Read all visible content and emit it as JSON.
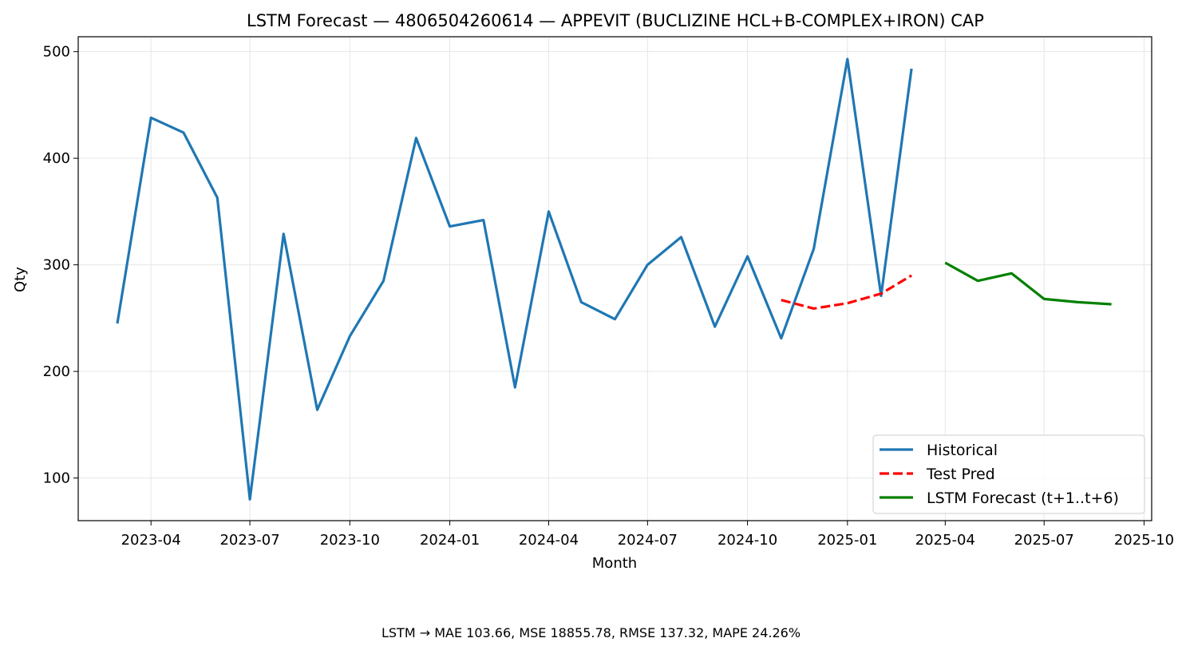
{
  "chart_data": {
    "type": "line",
    "title": "LSTM Forecast — 4806504260614 — APPEVIT (BUCLIZINE HCL+B-COMPLEX+IRON) CAP",
    "xlabel": "Month",
    "ylabel": "Qty",
    "xlim": [
      "2023-01-24",
      "2025-10-08"
    ],
    "ylim": [
      60,
      514
    ],
    "grid": true,
    "legend_position": "lower right",
    "x_ticks": [
      "2023-04",
      "2023-07",
      "2023-10",
      "2024-01",
      "2024-04",
      "2024-07",
      "2024-10",
      "2025-01",
      "2025-04",
      "2025-07",
      "2025-10"
    ],
    "y_ticks": [
      100,
      200,
      300,
      400,
      500
    ],
    "series": [
      {
        "name": "Historical",
        "color": "#1f77b4",
        "style": "solid",
        "x": [
          "2023-03-01",
          "2023-04-01",
          "2023-05-01",
          "2023-06-01",
          "2023-07-01",
          "2023-08-01",
          "2023-09-01",
          "2023-10-01",
          "2023-11-01",
          "2023-12-01",
          "2024-01-01",
          "2024-02-01",
          "2024-03-01",
          "2024-04-01",
          "2024-05-01",
          "2024-06-01",
          "2024-07-01",
          "2024-08-01",
          "2024-09-01",
          "2024-10-01",
          "2024-11-01",
          "2024-12-01",
          "2025-01-01",
          "2025-02-01",
          "2025-03-01"
        ],
        "values": [
          245,
          438,
          424,
          363,
          80,
          329,
          164,
          233,
          285,
          419,
          336,
          342,
          185,
          350,
          265,
          249,
          300,
          326,
          242,
          308,
          231,
          315,
          493,
          271,
          484
        ]
      },
      {
        "name": "Test Pred",
        "color": "#ff0000",
        "style": "dashed",
        "x": [
          "2024-11-01",
          "2024-12-01",
          "2025-01-01",
          "2025-02-01",
          "2025-03-01"
        ],
        "values": [
          267,
          259,
          264,
          273,
          290
        ]
      },
      {
        "name": "LSTM Forecast (t+1..t+6)",
        "color": "#008000",
        "style": "solid",
        "x": [
          "2025-04-01",
          "2025-05-01",
          "2025-06-01",
          "2025-07-01",
          "2025-08-01",
          "2025-09-01"
        ],
        "values": [
          302,
          285,
          292,
          268,
          265,
          263
        ]
      }
    ]
  },
  "footer": {
    "metrics": "LSTM → MAE 103.66, MSE 18855.78, RMSE 137.32, MAPE 24.26%"
  }
}
